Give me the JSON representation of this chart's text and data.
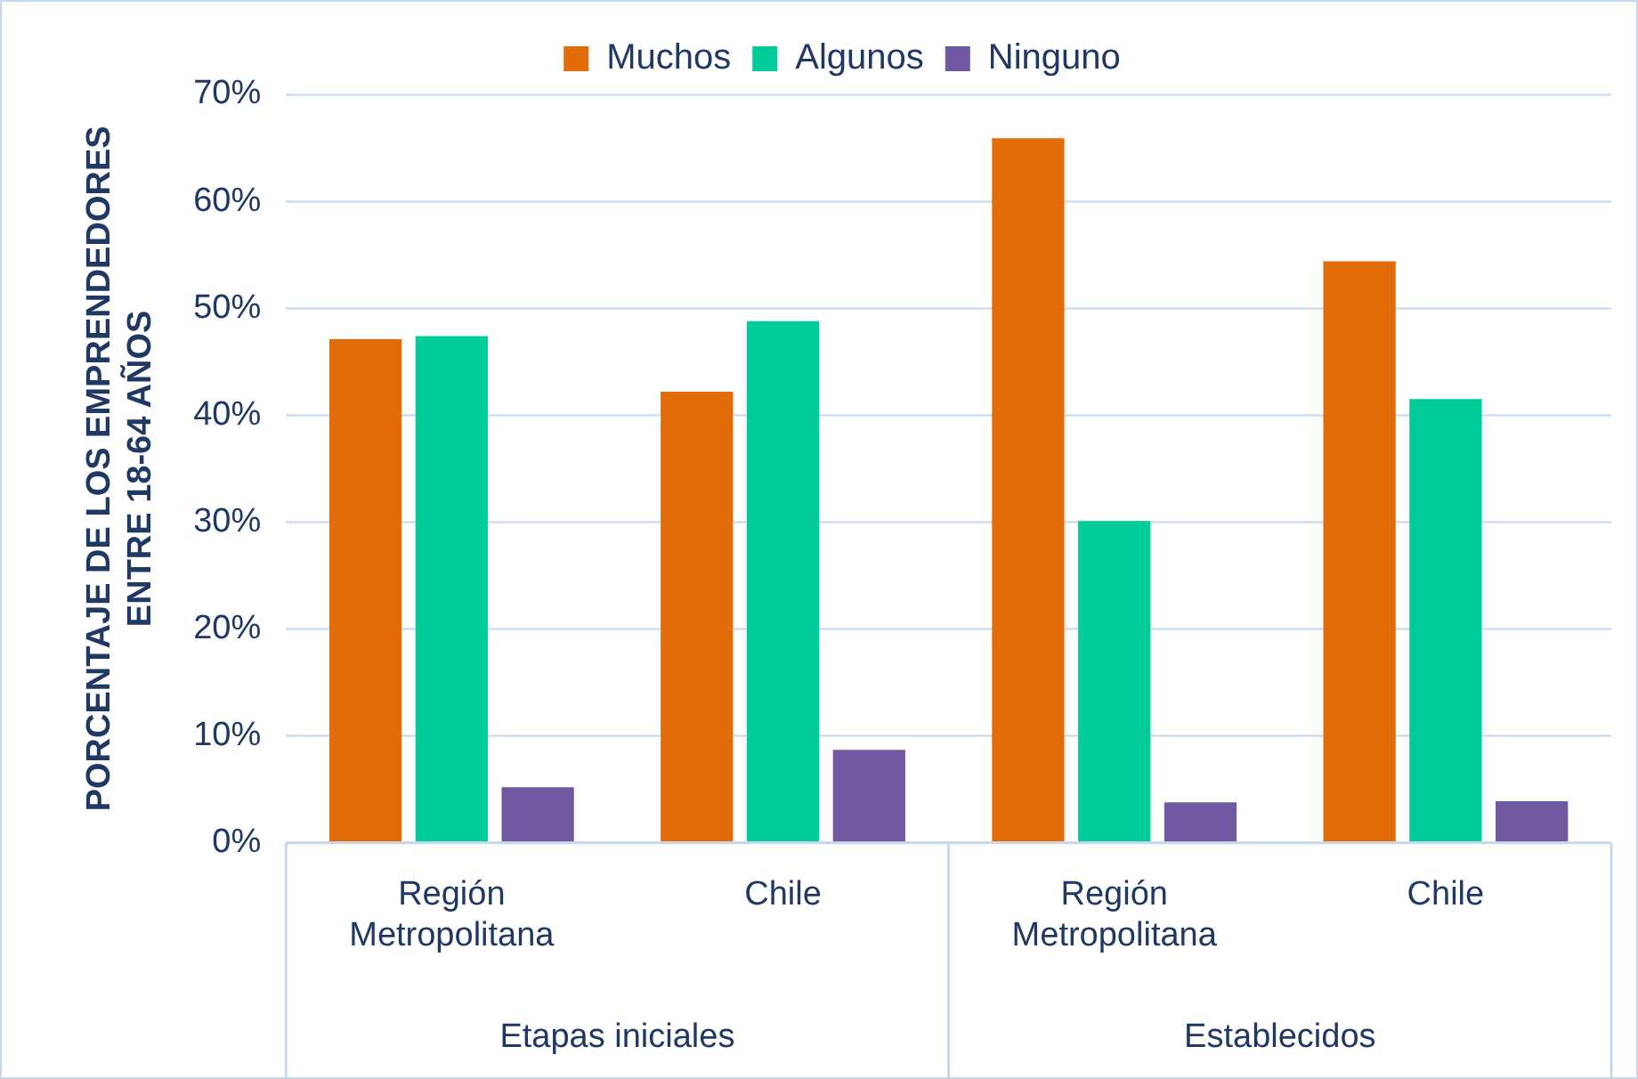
{
  "chart_data": {
    "type": "bar",
    "ylabel": "PORCENTAJE DE LOS EMPRENDEDORES ENTRE 18-64 AÑOS",
    "categories": [
      "Región Metropolitana",
      "Chile",
      "Región Metropolitana",
      "Chile"
    ],
    "series": [
      {
        "name": "Muchos",
        "color": "#e36c0a",
        "values": [
          47.1,
          42.2,
          65.9,
          54.4
        ]
      },
      {
        "name": "Algunos",
        "color": "#00cc99",
        "values": [
          47.4,
          48.8,
          30.1,
          41.5
        ]
      },
      {
        "name": "Ninguno",
        "color": "#7059a0",
        "values": [
          5.2,
          8.7,
          3.8,
          3.9
        ]
      }
    ],
    "annotations": [
      "Etapas iniciales",
      "Establecidos"
    ],
    "ylim": [
      0,
      70
    ],
    "yticks": [
      {
        "value": 0,
        "label": "0%"
      },
      {
        "value": 10,
        "label": "10%"
      },
      {
        "value": 20,
        "label": "20%"
      },
      {
        "value": 30,
        "label": "30%"
      },
      {
        "value": 40,
        "label": "40%"
      },
      {
        "value": 50,
        "label": "50%"
      },
      {
        "value": 60,
        "label": "60%"
      },
      {
        "value": 70,
        "label": "70%"
      }
    ],
    "grid": "y",
    "legend": "top"
  }
}
